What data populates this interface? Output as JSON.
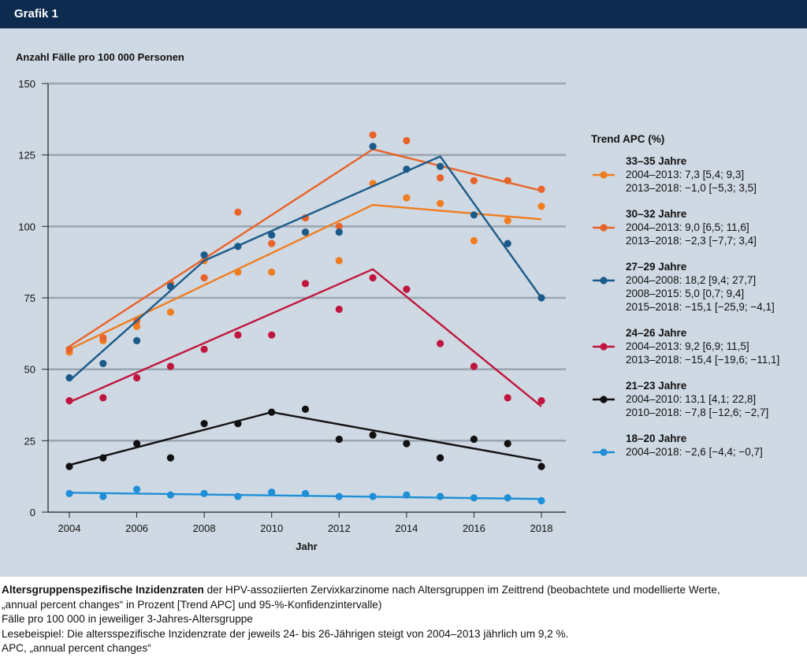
{
  "header": {
    "title": "Grafik 1"
  },
  "chart_data": {
    "type": "line",
    "title": "",
    "ylabel": "Anzahl Fälle pro 100 000 Personen",
    "xlabel": "Jahr",
    "xlim": [
      2004,
      2018
    ],
    "ylim": [
      0,
      150
    ],
    "x_ticks": [
      "2004",
      "2006",
      "2008",
      "2010",
      "2012",
      "2014",
      "2016",
      "2018"
    ],
    "y_ticks": [
      "0",
      "25",
      "50",
      "75",
      "100",
      "125",
      "150"
    ],
    "grid": "horizontal",
    "legend_title": "Trend APC (%)",
    "legend_placement": "right",
    "x": [
      2004,
      2005,
      2006,
      2007,
      2008,
      2009,
      2010,
      2011,
      2012,
      2013,
      2014,
      2015,
      2016,
      2017,
      2018
    ],
    "series": [
      {
        "name": "33–35 Jahre",
        "color": "#f07d20",
        "trend": [
          "2004–2013: 7,3 [5,4; 9,3]",
          "2013–2018: −1,0 [−5,3; 3,5]"
        ],
        "observed": [
          56,
          60,
          65,
          70,
          88,
          84,
          84,
          98,
          88,
          115,
          110,
          108,
          95,
          102,
          107
        ],
        "modelled": [
          [
            2004,
            57
          ],
          [
            2013,
            107.5
          ],
          [
            2018,
            102.5
          ]
        ]
      },
      {
        "name": "30–32 Jahre",
        "color": "#e8632a",
        "trend": [
          "2004–2013: 9,0 [6,5; 11,6]",
          "2013–2018: −2,3 [−7,7; 3,4]"
        ],
        "observed": [
          57,
          61,
          67,
          80,
          82,
          105,
          94,
          103,
          100,
          132,
          130,
          117,
          116,
          116,
          113
        ],
        "modelled": [
          [
            2004,
            58
          ],
          [
            2013,
            127
          ],
          [
            2018,
            112.5
          ]
        ]
      },
      {
        "name": "27–29 Jahre",
        "color": "#1b5b8a",
        "trend": [
          "2004–2008: 18,2 [9,4; 27,7]",
          "2008–2015: 5,0 [0,7; 9,4]",
          "2015–2018: −15,1 [−25,9; −4,1]"
        ],
        "observed": [
          47,
          52,
          60,
          79,
          90,
          93,
          97,
          98,
          98,
          128,
          120,
          121,
          104,
          94,
          75
        ],
        "modelled": [
          [
            2004,
            46
          ],
          [
            2008,
            88
          ],
          [
            2015,
            124.5
          ],
          [
            2018,
            75
          ]
        ]
      },
      {
        "name": "24–26 Jahre",
        "color": "#c0163e",
        "trend": [
          "2004–2013: 9,2 [6,9; 11,5]",
          "2013–2018: −15,4 [−19,6; −11,1]"
        ],
        "observed": [
          39,
          40,
          47,
          51,
          57,
          62,
          62,
          80,
          71,
          82,
          78,
          59,
          51,
          40,
          39
        ],
        "modelled": [
          [
            2004,
            38.5
          ],
          [
            2013,
            85
          ],
          [
            2018,
            37
          ]
        ]
      },
      {
        "name": "21–23 Jahre",
        "color": "#111111",
        "trend": [
          "2004–2010: 13,1 [4,1; 22,8]",
          "2010–2018: −7,8 [−12,6; −2,7]"
        ],
        "observed": [
          16,
          19,
          24,
          19,
          31,
          31,
          35,
          36,
          25.5,
          27,
          24,
          19,
          25.5,
          24,
          16
        ],
        "modelled": [
          [
            2004,
            16.5
          ],
          [
            2010,
            35
          ],
          [
            2018,
            18
          ]
        ]
      },
      {
        "name": "18–20 Jahre",
        "color": "#1e8fd6",
        "trend": [
          "2004–2018: −2,6 [−4,4; −0,7]"
        ],
        "observed": [
          6.5,
          5.5,
          8,
          6,
          6.5,
          5.5,
          7,
          6.5,
          5.5,
          5.5,
          6,
          5.5,
          5,
          5,
          4
        ],
        "modelled": [
          [
            2004,
            6.8
          ],
          [
            2018,
            4.6
          ]
        ]
      }
    ]
  },
  "caption": {
    "bold_lead": "Altersgruppenspezifische Inzidenzraten",
    "line1_rest": " der HPV-assoziierten Zervixkarzinome nach Altersgruppen im Zeittrend (beobachtete und modellierte Werte,",
    "line2": "„annual percent changes“ in Prozent [Trend APC] und 95-%-Konfidenzintervalle)",
    "line3": "Fälle pro 100 000 in jeweiliger 3-Jahres-Altersgruppe",
    "line4": "Lesebeispiel: Die altersspezifische Inzidenzrate der jeweils 24- bis 26-Jährigen steigt von 2004–2013 jährlich um 9,2 %.",
    "line5": "APC, „annual percent changes“"
  }
}
